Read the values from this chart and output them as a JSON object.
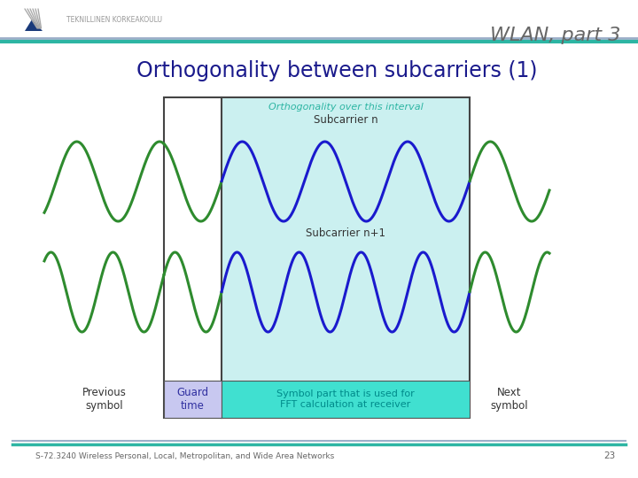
{
  "title": "WLAN, part 3",
  "slide_title": "Orthogonality between subcarriers (1)",
  "slide_title_color": "#1a1a8c",
  "header_line_color1": "#9baec8",
  "header_line_color2": "#2db5a3",
  "bg_color": "#FFFFFF",
  "footer_text": "S-72.3240 Wireless Personal, Local, Metropolitan, and Wide Area Networks",
  "footer_page": "23",
  "wave_color_green": "#2e8b2e",
  "wave_color_blue": "#1a1acd",
  "guard_box_color": "#c8c8f0",
  "fft_box_color": "#40e0d0",
  "ortho_box_color": "#b0e8e8",
  "ortho_label_color": "#2db5a3",
  "ortho_text": "Orthogonality over this interval",
  "subcarrier_n_text": "Subcarrier n",
  "subcarrier_n1_text": "Subcarrier n+1",
  "prev_text": "Previous\nsymbol",
  "guard_text": "Guard\ntime",
  "fft_text": "Symbol part that is used for\nFFT calculation at receiver",
  "next_text": "Next\nsymbol",
  "fft_label_color": "#008b8b",
  "guard_label_color": "#3030a0",
  "title_color": "#666666",
  "logo_text": "TEKNILLINEN KORKEAKOULU",
  "label_text_color": "#333333"
}
